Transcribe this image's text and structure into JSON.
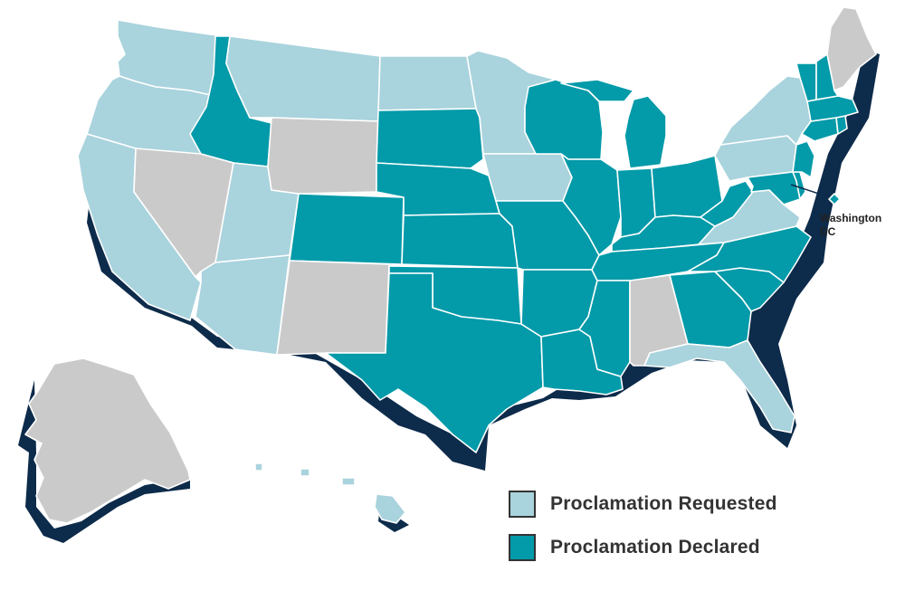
{
  "colors": {
    "requested": "#a9d3dd",
    "declared": "#039aa9",
    "none": "#cacaca",
    "shadow": "#0d2b4a",
    "border": "#ffffff"
  },
  "legend": {
    "requested_label": "Proclamation Requested",
    "declared_label": "Proclamation Declared"
  },
  "dc": {
    "line1": "Washington",
    "line2": "DC",
    "status": "declared"
  },
  "states": {
    "washington": "requested",
    "oregon": "requested",
    "california": "requested",
    "idaho": "declared",
    "nevada": "none",
    "utah": "requested",
    "arizona": "requested",
    "montana": "requested",
    "wyoming": "none",
    "colorado": "declared",
    "new_mexico": "none",
    "north_dakota": "requested",
    "south_dakota": "declared",
    "nebraska": "declared",
    "kansas": "declared",
    "oklahoma": "declared",
    "texas": "declared",
    "minnesota": "requested",
    "iowa": "requested",
    "missouri": "declared",
    "arkansas": "declared",
    "louisiana": "declared",
    "wisconsin": "declared",
    "illinois": "declared",
    "michigan": "declared",
    "indiana": "declared",
    "ohio": "declared",
    "kentucky": "declared",
    "tennessee": "declared",
    "mississippi": "declared",
    "alabama": "none",
    "georgia": "declared",
    "florida": "requested",
    "south_carolina": "declared",
    "north_carolina": "declared",
    "virginia": "requested",
    "west_virginia": "declared",
    "pennsylvania": "requested",
    "new_york": "requested",
    "maryland": "declared",
    "delaware": "declared",
    "new_jersey": "declared",
    "connecticut": "declared",
    "rhode_island": "declared",
    "massachusetts": "declared",
    "vermont": "declared",
    "new_hampshire": "declared",
    "maine": "none",
    "alaska": "none",
    "hawaii": "requested"
  }
}
